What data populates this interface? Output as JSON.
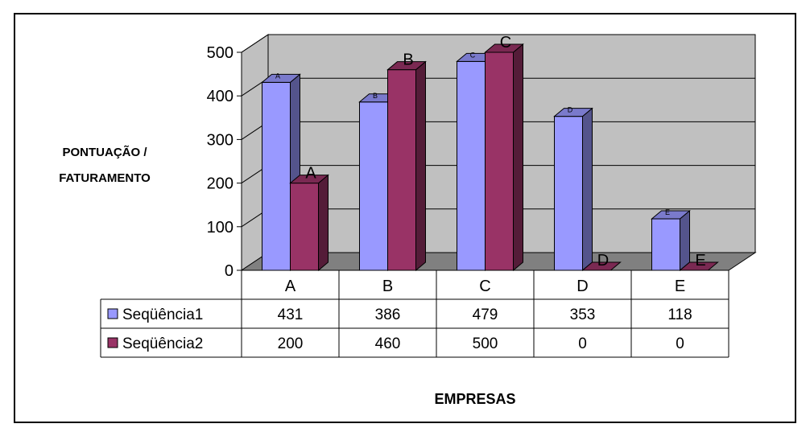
{
  "chart_data": {
    "type": "bar",
    "chart_style": "3d-clustered-column",
    "categories": [
      "A",
      "B",
      "C",
      "D",
      "E"
    ],
    "series": [
      {
        "name": "Seqüência1",
        "values": [
          431,
          386,
          479,
          353,
          118
        ],
        "point_labels": [
          "A",
          "B",
          "C",
          "D",
          "E"
        ],
        "color": "#9999ff"
      },
      {
        "name": "Seqüência2",
        "values": [
          200,
          460,
          500,
          0,
          0
        ],
        "point_labels": [
          "A",
          "B",
          "C",
          "D",
          "E"
        ],
        "color": "#993366"
      }
    ],
    "title": "",
    "xlabel": "EMPRESAS",
    "ylabel_lines": [
      "PONTUAÇÃO /",
      "FATURAMENTO"
    ],
    "ylim": [
      0,
      500
    ],
    "yticks": [
      0,
      100,
      200,
      300,
      400,
      500
    ],
    "grid": true,
    "legend": "data-table",
    "data_table": true,
    "colors": {
      "wall": "#c0c0c0",
      "floor": "#808080",
      "border": "#000000"
    }
  }
}
